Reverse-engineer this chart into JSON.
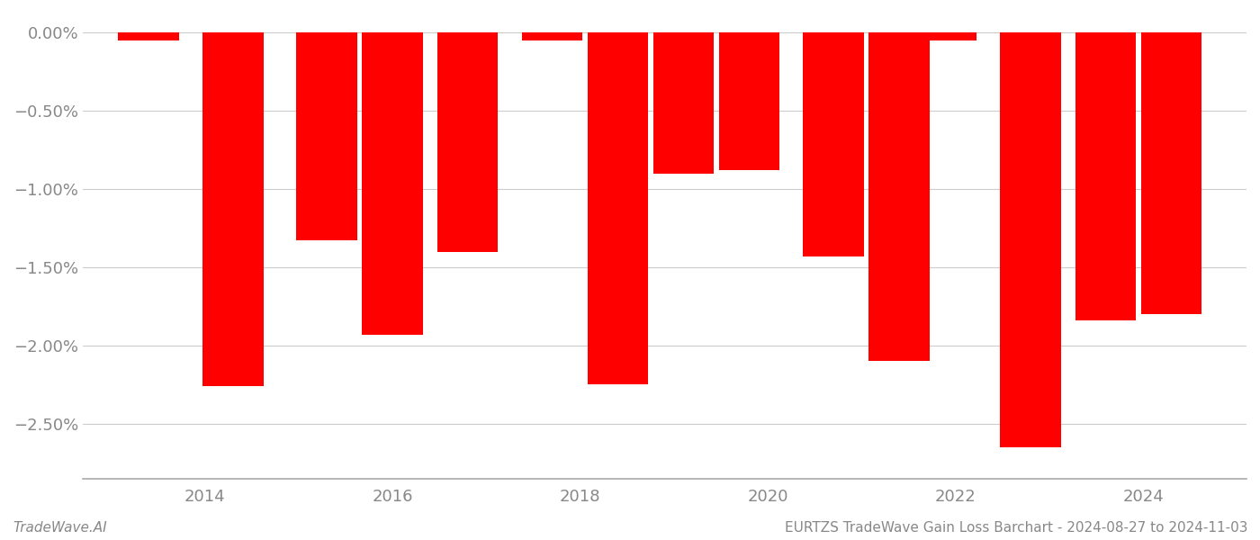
{
  "years": [
    2013.4,
    2014.3,
    2015.3,
    2016.0,
    2016.8,
    2017.7,
    2018.4,
    2019.1,
    2019.8,
    2020.7,
    2021.4,
    2021.9,
    2022.8,
    2023.6,
    2024.3
  ],
  "values": [
    -0.05,
    -2.26,
    -1.33,
    -1.93,
    -1.4,
    -0.05,
    -2.25,
    -0.9,
    -0.88,
    -1.43,
    -2.1,
    -0.05,
    -2.65,
    -1.84,
    -1.8
  ],
  "bar_color": "#ff0000",
  "bar_width": 0.65,
  "ylim": [
    -2.85,
    0.12
  ],
  "yticks": [
    0.0,
    -0.5,
    -1.0,
    -1.5,
    -2.0,
    -2.5
  ],
  "xlim": [
    2012.7,
    2025.1
  ],
  "xticks": [
    2014,
    2016,
    2018,
    2020,
    2022,
    2024
  ],
  "grid_color": "#cccccc",
  "background_color": "#ffffff",
  "footer_left": "TradeWave.AI",
  "footer_right": "EURTZS TradeWave Gain Loss Barchart - 2024-08-27 to 2024-11-03",
  "footer_fontsize": 11,
  "tick_label_color": "#888888",
  "tick_label_fontsize": 13,
  "spine_color": "#aaaaaa"
}
